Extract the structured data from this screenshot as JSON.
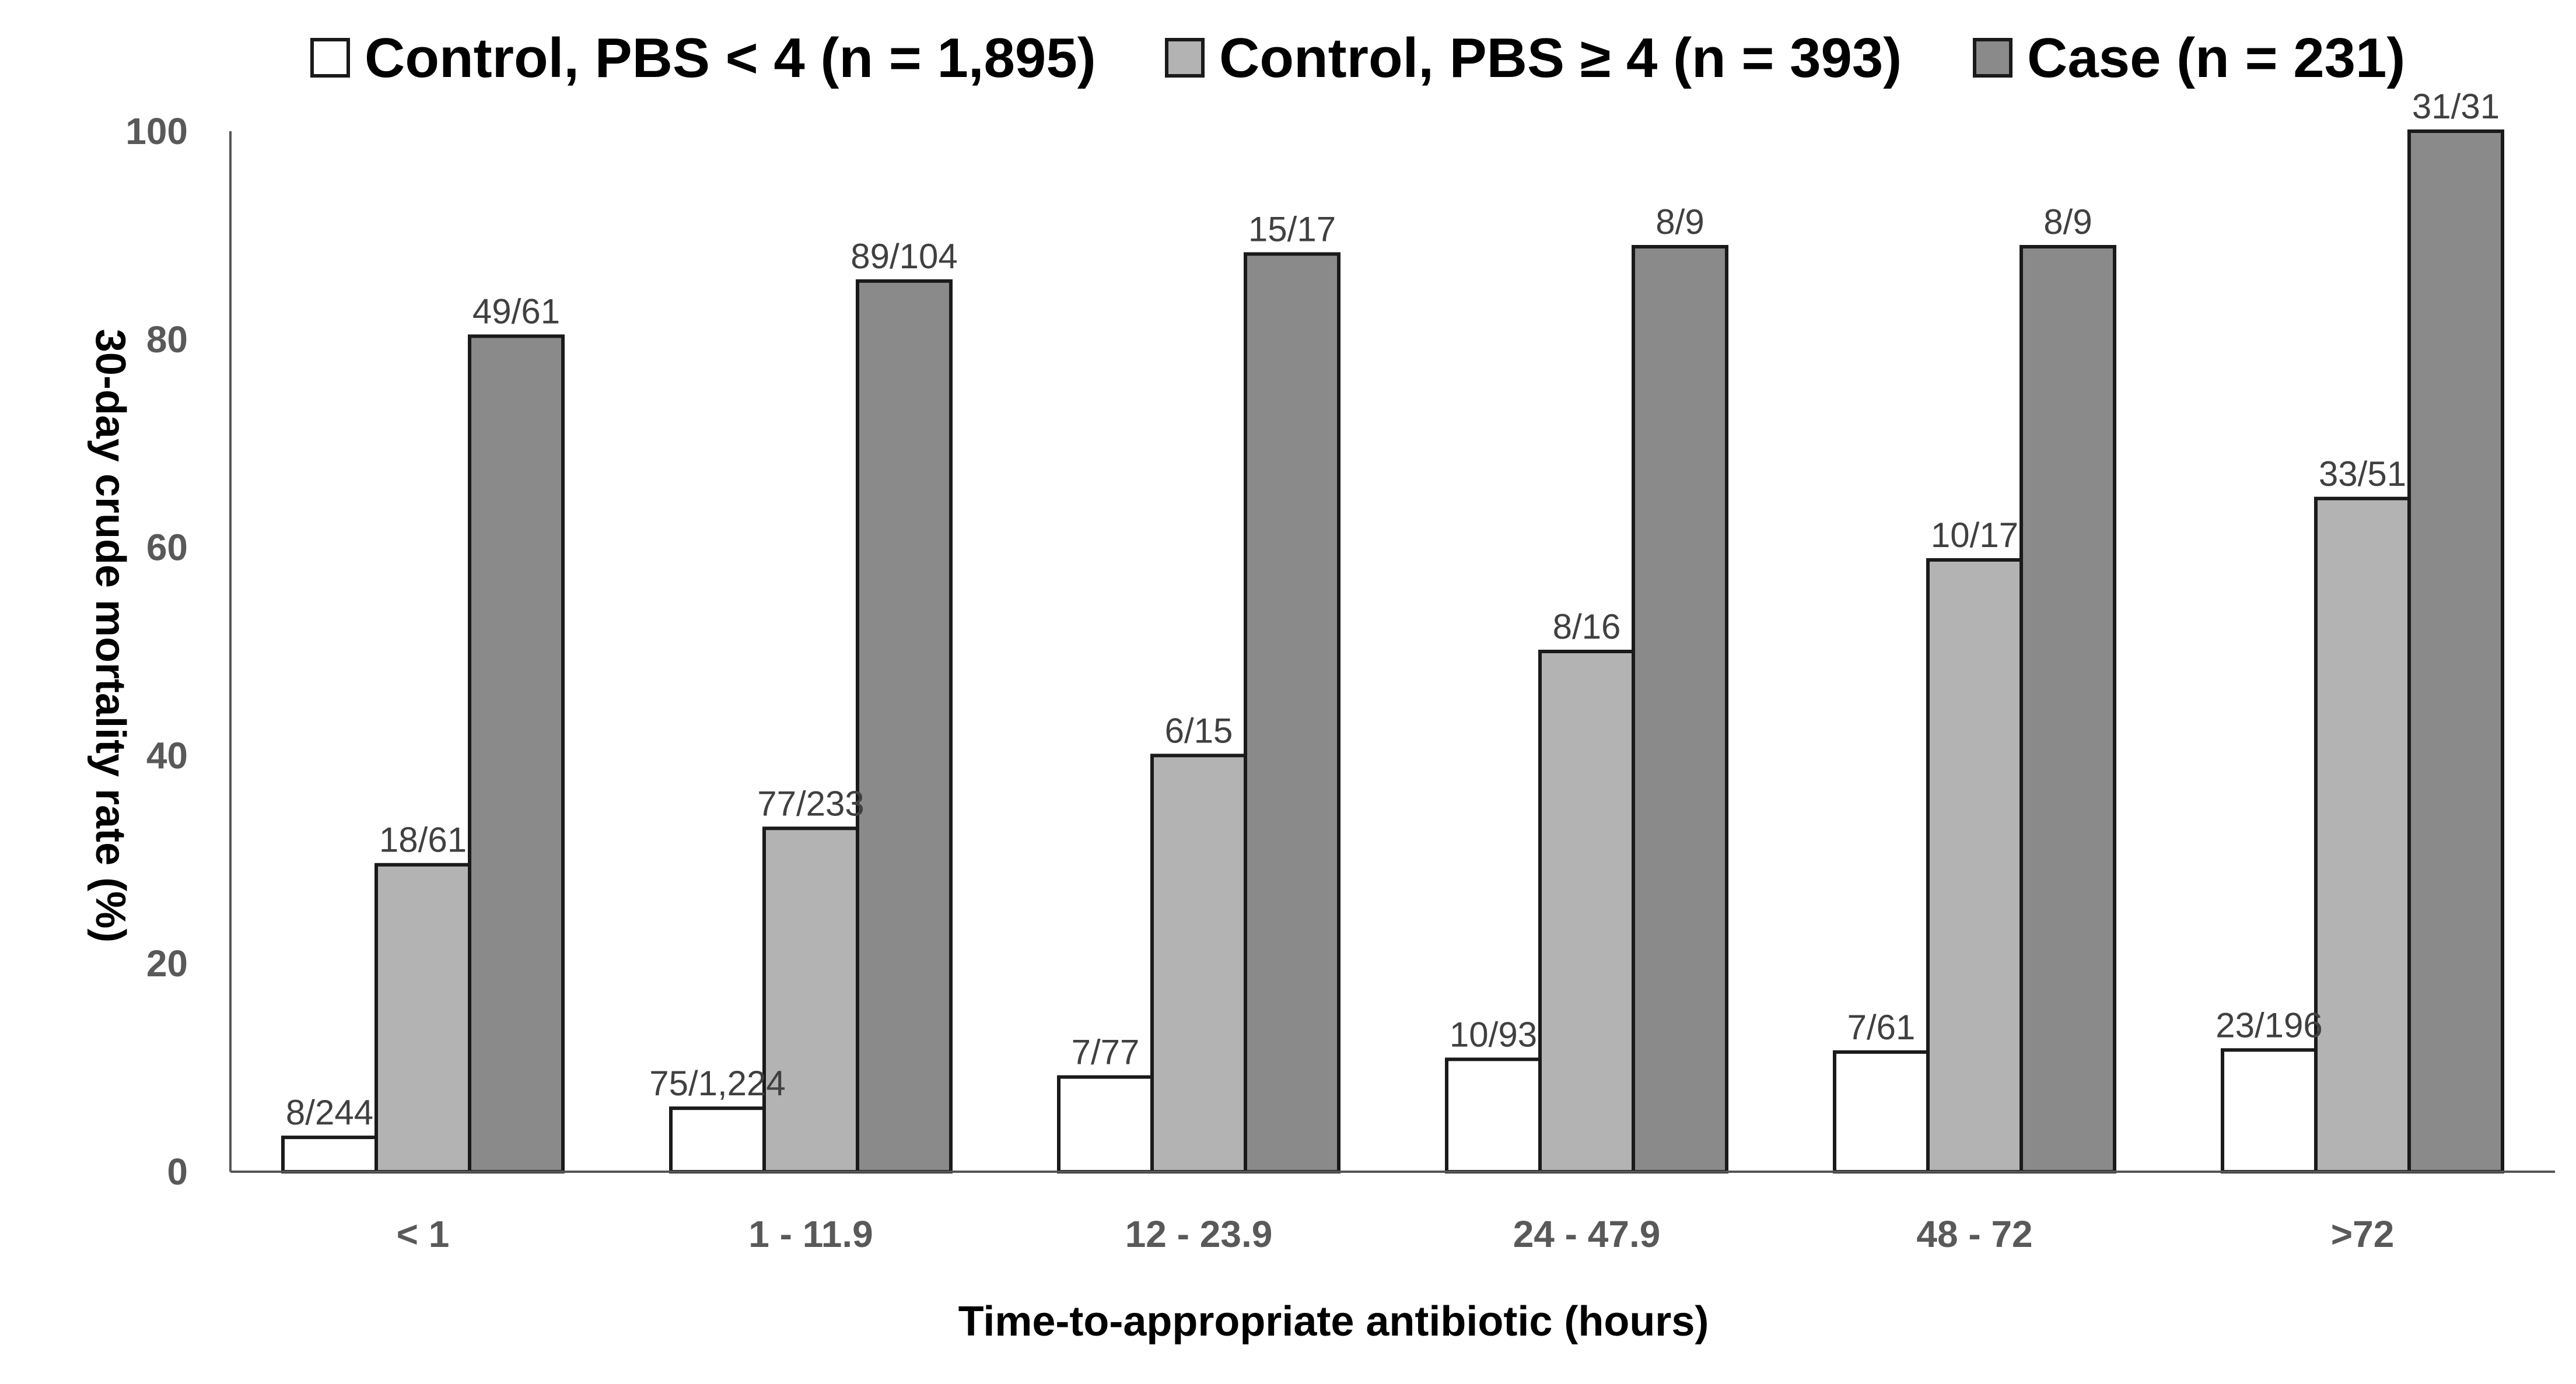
{
  "chart_data": {
    "type": "bar",
    "title": "",
    "xlabel": "Time-to-appropriate antibiotic (hours)",
    "ylabel": "30-day crude mortality rate (%)",
    "ylim": [
      0,
      100
    ],
    "yticks": [
      0,
      20,
      40,
      60,
      80,
      100
    ],
    "grid": false,
    "legend_position": "top",
    "categories": [
      "< 1",
      "1 - 11.9",
      "12 - 23.9",
      "24 - 47.9",
      "48 - 72",
      ">72"
    ],
    "series": [
      {
        "name": "Control, PBS < 4 (n = 1,895)",
        "color": "#ffffff",
        "values": [
          3.3,
          6.1,
          9.1,
          10.8,
          11.5,
          11.7
        ],
        "labels": [
          "8/244",
          "75/1,224",
          "7/77",
          "10/93",
          "7/61",
          "23/196"
        ]
      },
      {
        "name": "Control, PBS ≥ 4 (n = 393)",
        "color": "#b3b3b3",
        "values": [
          29.5,
          33.0,
          40.0,
          50.0,
          58.8,
          64.7
        ],
        "labels": [
          "18/61",
          "77/233",
          "6/15",
          "8/16",
          "10/17",
          "33/51"
        ]
      },
      {
        "name": "Case (n = 231)",
        "color": "#8a8a8a",
        "values": [
          80.3,
          85.6,
          88.2,
          88.9,
          88.9,
          100
        ],
        "labels": [
          "49/61",
          "89/104",
          "15/17",
          "8/9",
          "8/9",
          "31/31"
        ]
      }
    ]
  }
}
